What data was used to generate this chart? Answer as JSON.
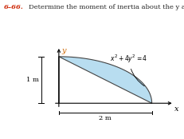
{
  "title_num": "6–66.",
  "title_text": "Determine the moment of inertia about the y axis.",
  "equation_label": "$x^2 + 4y^2 = 4$",
  "dim_y": "1 m",
  "dim_x": "2 m",
  "fill_color": "#b8ddf0",
  "fill_edge_color": "#444444",
  "bg_color": "#ffffff",
  "title_color_number": "#cc2200",
  "title_color_text": "#222222",
  "ellipse_a": 2.0,
  "ellipse_b": 1.0,
  "fig_width": 2.32,
  "fig_height": 1.74,
  "dpi": 100
}
